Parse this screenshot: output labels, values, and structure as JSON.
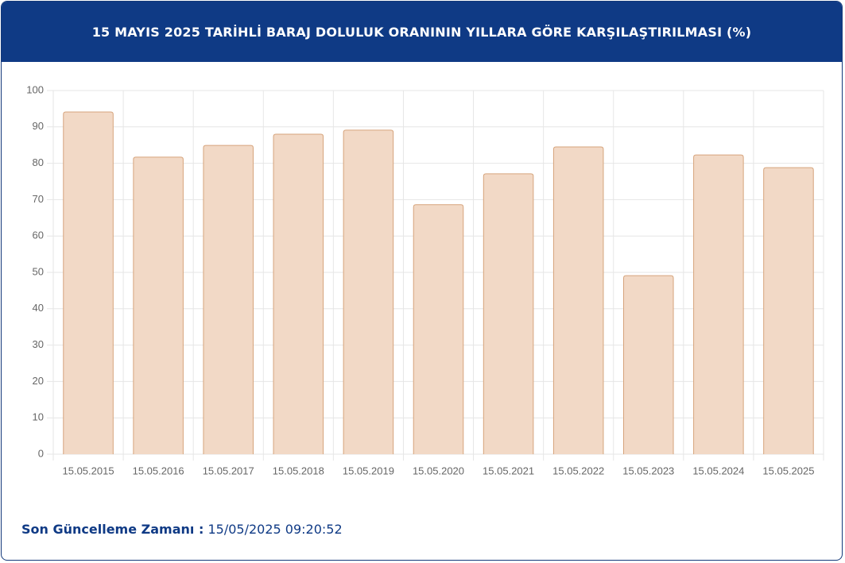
{
  "chart_data": {
    "type": "bar",
    "title": "15 MAYIS 2025 TARİHLİ BARAJ DOLULUK ORANININ YILLARA GÖRE KARŞILAŞTIRILMASI (%)",
    "categories": [
      "15.05.2015",
      "15.05.2016",
      "15.05.2017",
      "15.05.2018",
      "15.05.2019",
      "15.05.2020",
      "15.05.2021",
      "15.05.2022",
      "15.05.2023",
      "15.05.2024",
      "15.05.2025"
    ],
    "values": [
      94.1,
      81.7,
      84.9,
      88.0,
      89.1,
      68.6,
      77.1,
      84.5,
      49.1,
      82.3,
      78.8
    ],
    "color": "#f2d9c6",
    "border_color": "#d6a47c",
    "ylim": [
      0,
      100
    ],
    "yticks": [
      0,
      10,
      20,
      30,
      40,
      50,
      60,
      70,
      80,
      90,
      100
    ],
    "grid": true
  },
  "footer": {
    "label": "Son Güncelleme Zamanı :",
    "value": "15/05/2025 09:20:52"
  }
}
